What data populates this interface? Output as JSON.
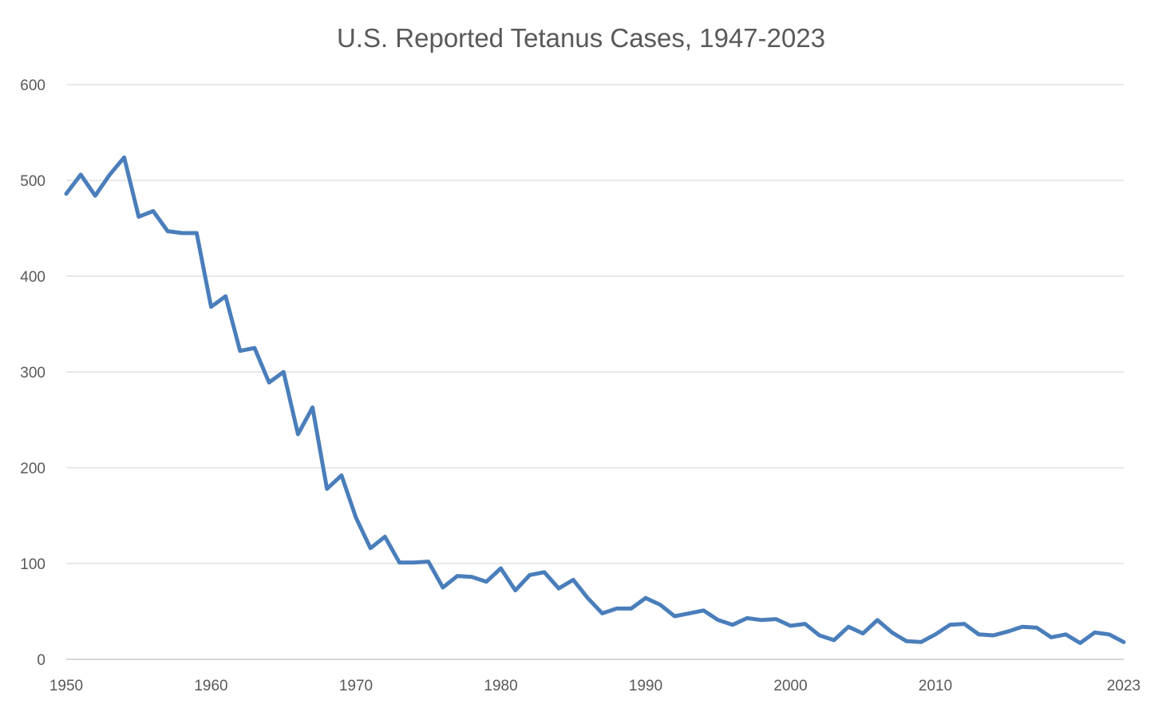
{
  "chart_data": {
    "type": "line",
    "title": "U.S. Reported Tetanus Cases, 1947-2023",
    "xlabel": "",
    "ylabel": "",
    "xlim": [
      1950,
      2023
    ],
    "ylim": [
      0,
      600
    ],
    "y_ticks": [
      0,
      100,
      200,
      300,
      400,
      500,
      600
    ],
    "x_ticks": [
      1950,
      1960,
      1970,
      1980,
      1990,
      2000,
      2010,
      2023
    ],
    "grid": true,
    "legend": "none",
    "series": [
      {
        "color": "#4a7ebb",
        "x": [
          1950,
          1951,
          1952,
          1953,
          1954,
          1955,
          1956,
          1957,
          1958,
          1959,
          1960,
          1961,
          1962,
          1963,
          1964,
          1965,
          1966,
          1967,
          1968,
          1969,
          1970,
          1971,
          1972,
          1973,
          1974,
          1975,
          1976,
          1977,
          1978,
          1979,
          1980,
          1981,
          1982,
          1983,
          1984,
          1985,
          1986,
          1987,
          1988,
          1989,
          1990,
          1991,
          1992,
          1993,
          1994,
          1995,
          1996,
          1997,
          1998,
          1999,
          2000,
          2001,
          2002,
          2003,
          2004,
          2005,
          2006,
          2007,
          2008,
          2009,
          2010,
          2011,
          2012,
          2013,
          2014,
          2015,
          2016,
          2017,
          2018,
          2019,
          2020,
          2021,
          2022,
          2023
        ],
        "values": [
          486,
          506,
          484,
          506,
          524,
          462,
          468,
          447,
          445,
          445,
          368,
          379,
          322,
          325,
          289,
          300,
          235,
          263,
          178,
          192,
          148,
          116,
          128,
          101,
          101,
          102,
          75,
          87,
          86,
          81,
          95,
          72,
          88,
          91,
          74,
          83,
          64,
          48,
          53,
          53,
          64,
          57,
          45,
          48,
          51,
          41,
          36,
          43,
          41,
          42,
          35,
          37,
          25,
          20,
          34,
          27,
          41,
          28,
          19,
          18,
          26,
          36,
          37,
          26,
          25,
          29,
          34,
          33,
          23,
          26,
          17,
          28,
          26,
          18
        ]
      }
    ]
  }
}
